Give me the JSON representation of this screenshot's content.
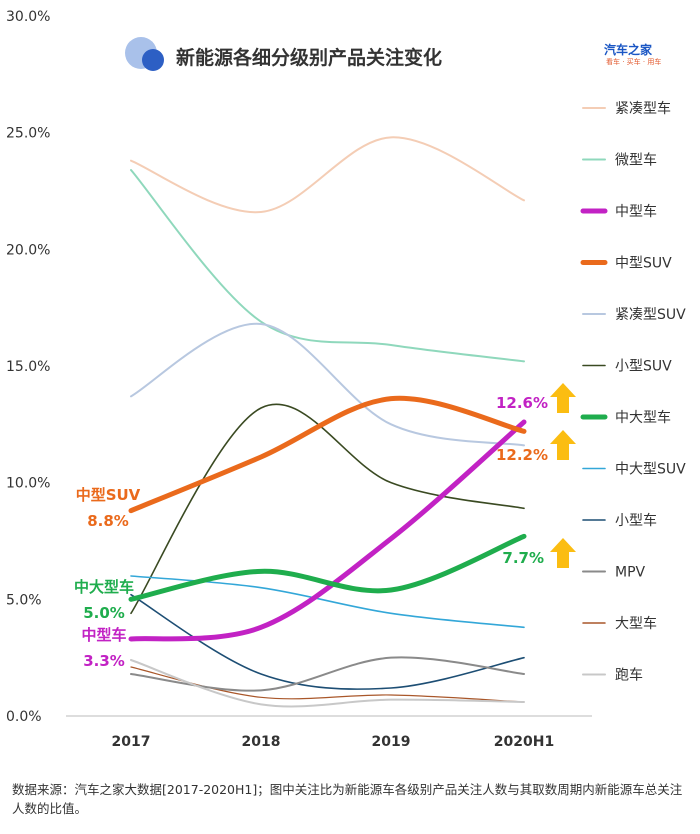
{
  "chart_data": {
    "type": "line",
    "title": "新能源各细分级别产品关注变化",
    "categories": [
      "2017",
      "2018",
      "2019",
      "2020H1"
    ],
    "y_tick_labels": [
      "0.0%",
      "5.0%",
      "10.0%",
      "15.0%",
      "20.0%",
      "25.0%",
      "30.0%"
    ],
    "ylim": [
      0,
      30
    ],
    "legend_position": "right",
    "series": [
      {
        "name": "紧凑型车",
        "color": "#f4cdb5",
        "width": 2,
        "values": [
          23.8,
          21.6,
          24.8,
          22.1
        ]
      },
      {
        "name": "微型车",
        "color": "#8fd8bc",
        "width": 2,
        "values": [
          23.4,
          16.9,
          15.9,
          15.2
        ]
      },
      {
        "name": "中型车",
        "color": "#c222c4",
        "width": 5,
        "values": [
          3.3,
          3.8,
          7.6,
          12.6
        ]
      },
      {
        "name": "中型SUV",
        "color": "#ea6a1c",
        "width": 5,
        "values": [
          8.8,
          11.1,
          13.6,
          12.2
        ]
      },
      {
        "name": "紧凑型SUV",
        "color": "#b8c8e0",
        "width": 2,
        "values": [
          13.7,
          16.8,
          12.5,
          11.6
        ]
      },
      {
        "name": "小型SUV",
        "color": "#3a4a22",
        "width": 1.6,
        "values": [
          4.4,
          13.2,
          10.0,
          8.9
        ]
      },
      {
        "name": "中大型车",
        "color": "#1fad4d",
        "width": 5,
        "values": [
          5.0,
          6.2,
          5.4,
          7.7
        ]
      },
      {
        "name": "中大型SUV",
        "color": "#33a7d8",
        "width": 1.6,
        "values": [
          6.0,
          5.5,
          4.4,
          3.8
        ]
      },
      {
        "name": "小型车",
        "color": "#1d4e74",
        "width": 1.6,
        "values": [
          5.2,
          1.8,
          1.2,
          2.5
        ]
      },
      {
        "name": "MPV",
        "color": "#8a8a8a",
        "width": 2,
        "values": [
          1.8,
          1.1,
          2.5,
          1.8
        ]
      },
      {
        "name": "大型车",
        "color": "#a9572a",
        "width": 1.2,
        "values": [
          2.1,
          0.8,
          0.9,
          0.6
        ]
      },
      {
        "name": "跑车",
        "color": "#c8c8c8",
        "width": 2,
        "values": [
          2.4,
          0.5,
          0.7,
          0.6
        ]
      }
    ],
    "annotations": {
      "start": [
        {
          "series": "中型SUV",
          "label": "中型SUV",
          "value_label": "8.8%",
          "color": "#ea6a1c"
        },
        {
          "series": "中大型车",
          "label": "中大型车",
          "value_label": "5.0%",
          "color": "#1fad4d"
        },
        {
          "series": "中型车",
          "label": "中型车",
          "value_label": "3.3%",
          "color": "#c222c4"
        }
      ],
      "end": [
        {
          "series": "中型车",
          "value_label": "12.6%",
          "color": "#c222c4"
        },
        {
          "series": "中型SUV",
          "value_label": "12.2%",
          "color": "#ea6a1c"
        },
        {
          "series": "中大型车",
          "value_label": "7.7%",
          "color": "#1fad4d"
        }
      ]
    }
  },
  "logo": {
    "main": "汽车之家",
    "sub": "看车 · 买车 · 用车"
  },
  "source_note": "数据来源：汽车之家大数据[2017-2020H1]；图中关注比为新能源车各级别产品关注人数与其取数周期内新能源车总关注人数的比值。"
}
